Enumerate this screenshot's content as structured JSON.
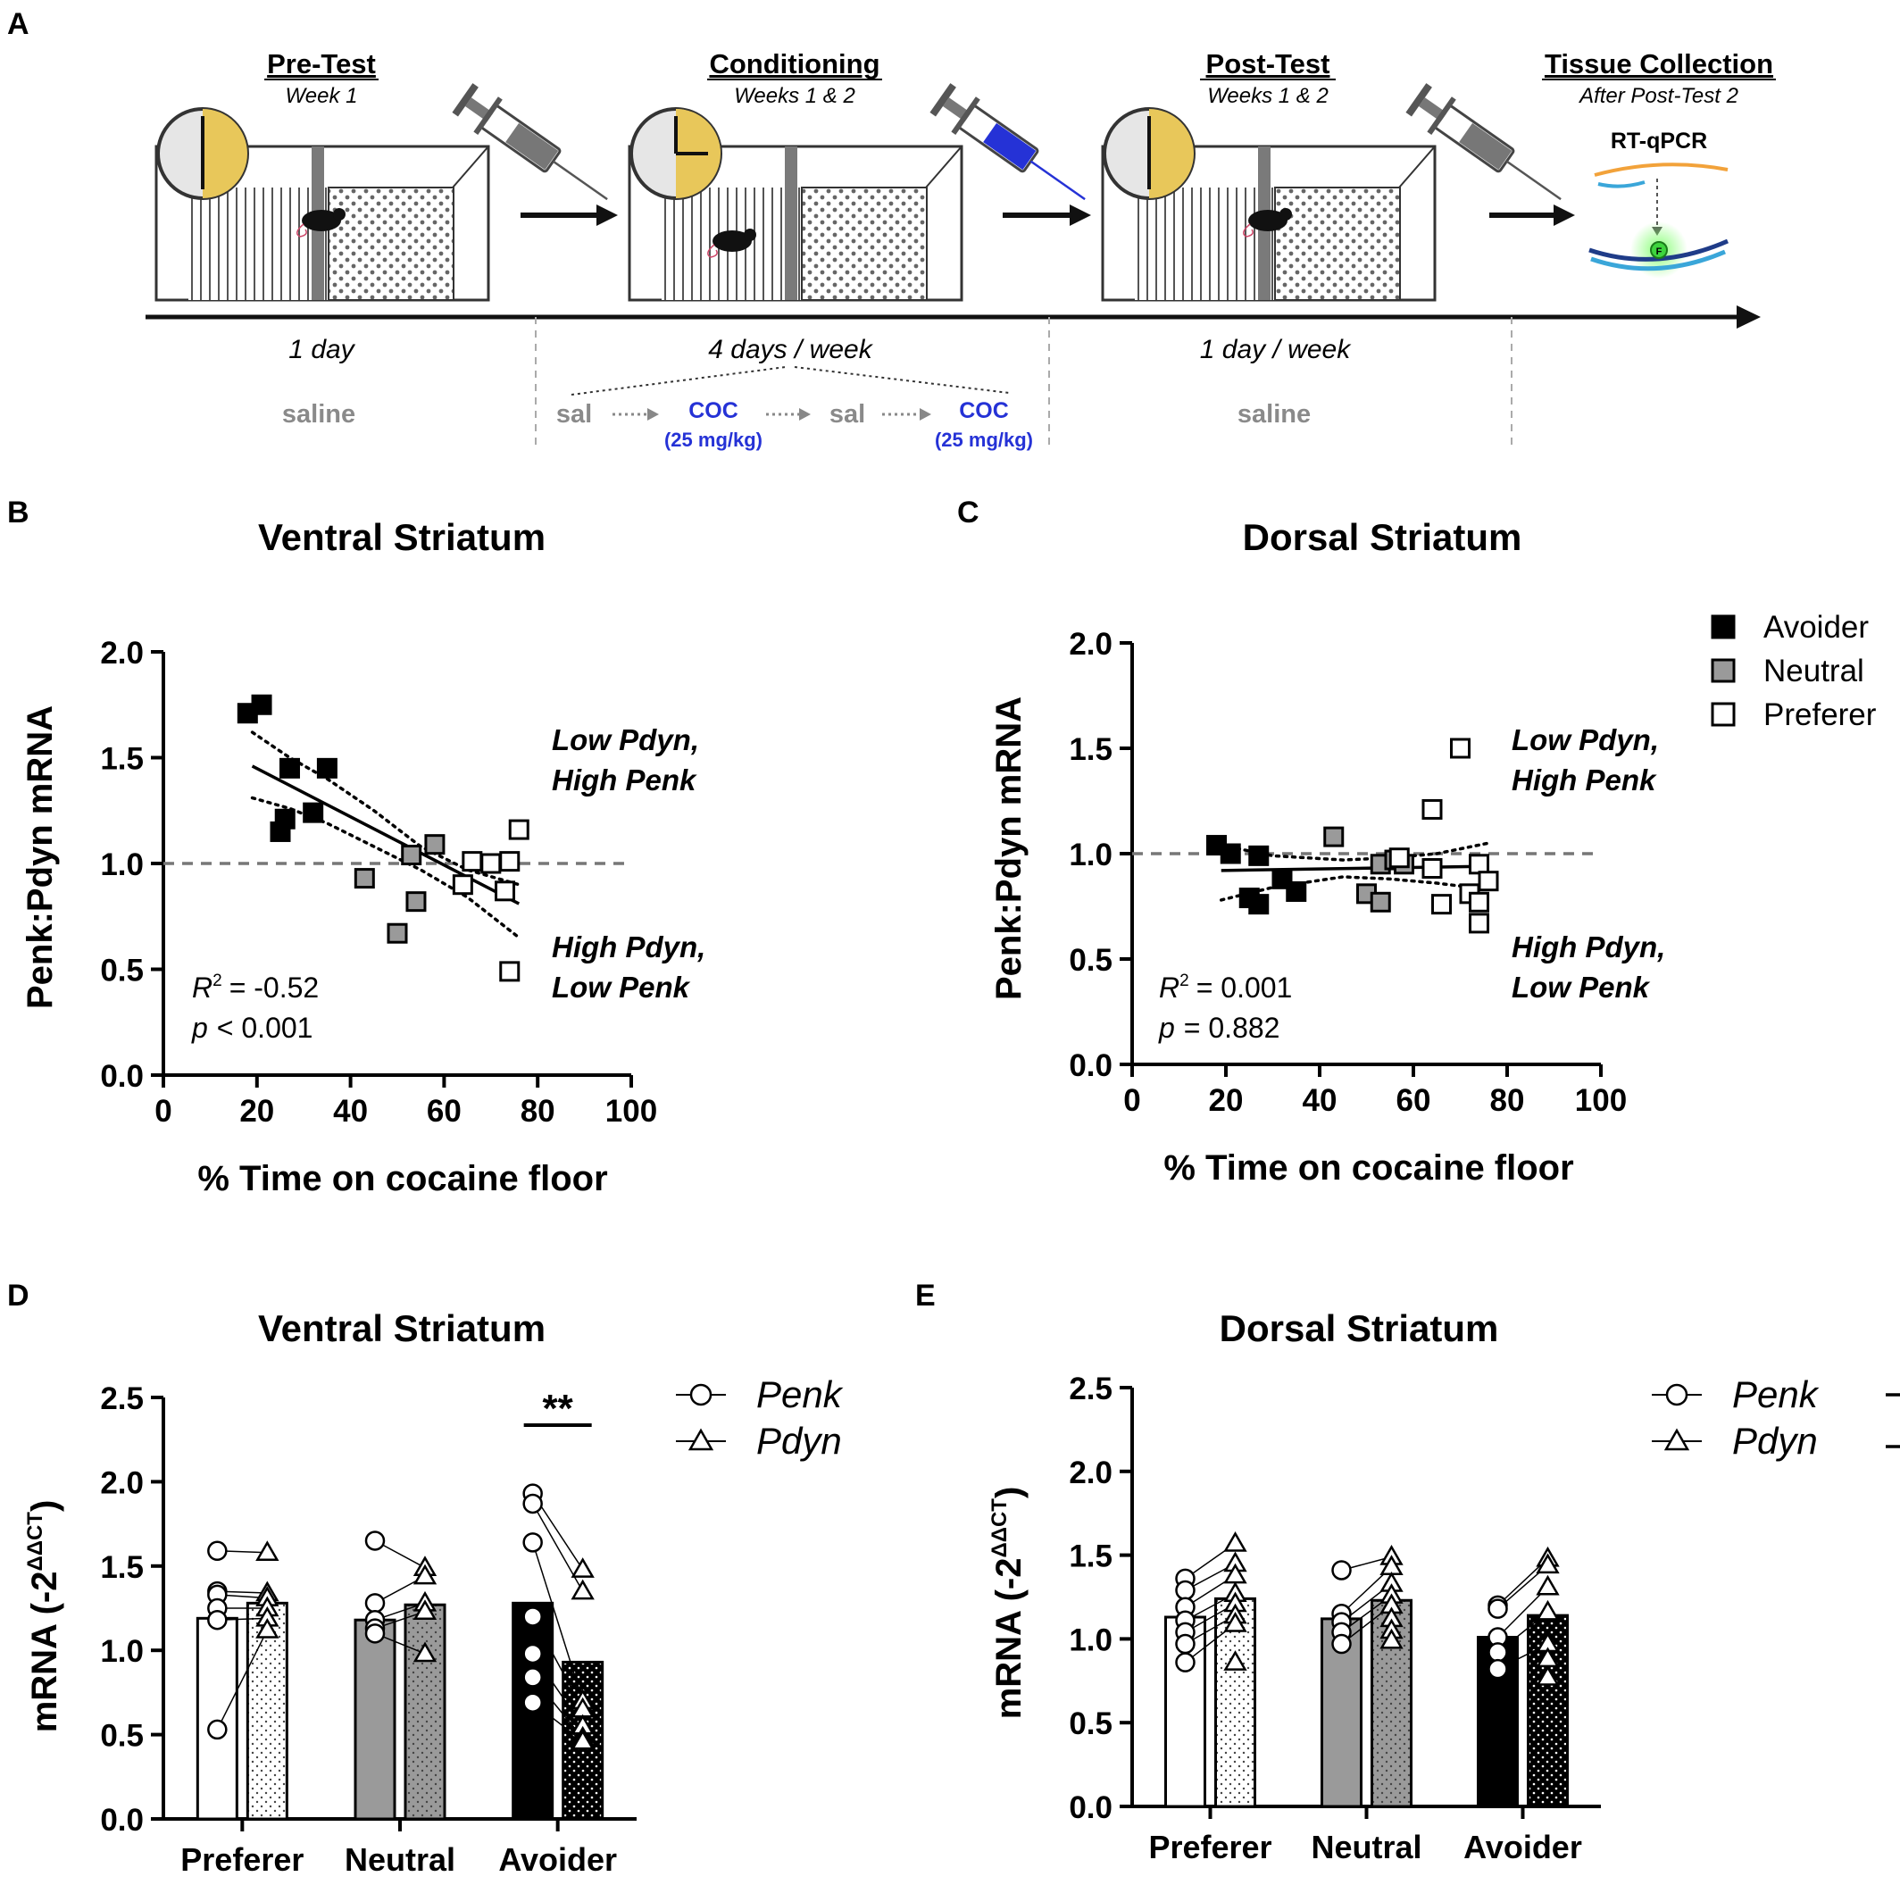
{
  "panels": {
    "a": "A",
    "b": "B",
    "c": "C",
    "d": "D",
    "e": "E"
  },
  "timeline": {
    "stages": [
      {
        "title": "Pre-Test",
        "sub": "Week 1"
      },
      {
        "title": "Conditioning",
        "sub": "Weeks 1 &  2"
      },
      {
        "title": "Post-Test",
        "sub": "Weeks 1 & 2"
      },
      {
        "title": "Tissue Collection",
        "sub": "After Post-Test 2"
      }
    ],
    "method": "RT-qPCR",
    "durations": [
      "1 day",
      "4 days / week",
      "1 day / week"
    ],
    "saline": "saline",
    "sal": "sal",
    "coc": "COC",
    "dose": "(25 mg/kg)",
    "syringe_colors": [
      "#777777",
      "#2532d6",
      "#777777"
    ],
    "timer_fill": "#e8c75a"
  },
  "scatter_common": {
    "ylabel": "Penk:Pdyn mRNA",
    "xlabel": "% Time on cocaine floor",
    "xticks": [
      "0",
      "20",
      "40",
      "60",
      "80",
      "100"
    ],
    "yticks": [
      "0.0",
      "0.5",
      "1.0",
      "1.5",
      "2.0"
    ],
    "quad_high_1": "Low Pdyn,",
    "quad_high_2": "High Penk",
    "quad_low_1": "High Pdyn,",
    "quad_low_2": "Low Penk",
    "r2_label": "R",
    "p_label": "p"
  },
  "legend_groups": [
    {
      "name": "Avoider",
      "color": "#000000"
    },
    {
      "name": "Neutral",
      "color": "#9a9a9a"
    },
    {
      "name": "Preferer",
      "color": "#ffffff"
    }
  ],
  "bar_common": {
    "ylabel_main": "mRNA (-2",
    "ylabel_sup": "ΔΔCT",
    "ylabel_close": ")",
    "categories": [
      "Preferer",
      "Neutral",
      "Avoider"
    ],
    "yticks": [
      "0.0",
      "0.5",
      "1.0",
      "1.5",
      "2.0",
      "2.5"
    ],
    "legend": [
      "Penk",
      "Pdyn"
    ]
  },
  "chart_data": [
    {
      "id": "B",
      "type": "scatter",
      "title": "Ventral Striatum",
      "xlabel": "% Time on cocaine floor",
      "ylabel": "Penk:Pdyn mRNA",
      "xlim": [
        0,
        100
      ],
      "ylim": [
        0,
        2.0
      ],
      "reference_line_y": 1.0,
      "r2": "= -0.52",
      "p": "< 0.001",
      "fit": {
        "x": [
          19,
          76
        ],
        "y": [
          1.46,
          0.81
        ]
      },
      "ci_upper": {
        "x": [
          19,
          27,
          35,
          45,
          55,
          65,
          76
        ],
        "y": [
          1.62,
          1.5,
          1.4,
          1.25,
          1.08,
          0.97,
          0.9
        ]
      },
      "ci_lower": {
        "x": [
          19,
          27,
          35,
          45,
          55,
          65,
          76
        ],
        "y": [
          1.31,
          1.26,
          1.19,
          1.08,
          0.97,
          0.84,
          0.65
        ]
      },
      "series": [
        {
          "name": "Avoider",
          "color": "#000000",
          "x": [
            18,
            21,
            27,
            35,
            25,
            26,
            32
          ],
          "y": [
            1.71,
            1.75,
            1.45,
            1.45,
            1.15,
            1.21,
            1.24
          ]
        },
        {
          "name": "Neutral",
          "color": "#9a9a9a",
          "x": [
            58,
            53,
            43,
            54,
            50
          ],
          "y": [
            1.09,
            1.04,
            0.93,
            0.82,
            0.67
          ]
        },
        {
          "name": "Preferer",
          "color": "#ffffff",
          "x": [
            76,
            66,
            70,
            74,
            64,
            73,
            74
          ],
          "y": [
            1.16,
            1.01,
            1.0,
            1.01,
            0.9,
            0.87,
            0.49
          ]
        }
      ]
    },
    {
      "id": "C",
      "type": "scatter",
      "title": "Dorsal Striatum",
      "xlabel": "% Time on cocaine floor",
      "ylabel": "Penk:Pdyn mRNA",
      "xlim": [
        0,
        100
      ],
      "ylim": [
        0,
        2.0
      ],
      "reference_line_y": 1.0,
      "r2": "= 0.001",
      "p": "= 0.882",
      "fit": {
        "x": [
          19,
          76
        ],
        "y": [
          0.92,
          0.94
        ]
      },
      "ci_upper": {
        "x": [
          19,
          30,
          45,
          55,
          65,
          76
        ],
        "y": [
          1.04,
          0.99,
          0.97,
          0.98,
          1.0,
          1.05
        ]
      },
      "ci_lower": {
        "x": [
          19,
          30,
          45,
          55,
          65,
          76
        ],
        "y": [
          0.78,
          0.84,
          0.89,
          0.88,
          0.86,
          0.83
        ]
      },
      "series": [
        {
          "name": "Avoider",
          "color": "#000000",
          "x": [
            18,
            21,
            27,
            32,
            35,
            25,
            27
          ],
          "y": [
            1.04,
            1.0,
            0.99,
            0.88,
            0.82,
            0.79,
            0.76
          ]
        },
        {
          "name": "Neutral",
          "color": "#9a9a9a",
          "x": [
            43,
            53,
            56,
            58,
            50,
            53
          ],
          "y": [
            1.08,
            0.95,
            0.97,
            0.95,
            0.81,
            0.77
          ]
        },
        {
          "name": "Preferer",
          "color": "#ffffff",
          "x": [
            70,
            64,
            57,
            64,
            74,
            76,
            72,
            66,
            74,
            74
          ],
          "y": [
            1.5,
            1.21,
            0.98,
            0.93,
            0.95,
            0.87,
            0.81,
            0.76,
            0.77,
            0.67
          ]
        }
      ]
    },
    {
      "id": "D",
      "type": "bar",
      "title": "Ventral Striatum",
      "ylabel": "mRNA (-2^ΔΔCT)",
      "ylim": [
        0,
        2.5
      ],
      "categories": [
        "Preferer",
        "Neutral",
        "Avoider"
      ],
      "series": [
        {
          "name": "Penk",
          "values": [
            1.19,
            1.18,
            1.28
          ],
          "points": [
            [
              1.59,
              1.35,
              1.33,
              1.25,
              1.18,
              0.53
            ],
            [
              1.65,
              1.28,
              1.18,
              1.13,
              1.1
            ],
            [
              1.93,
              1.87,
              1.64,
              1.2,
              0.98,
              0.84,
              0.69
            ]
          ]
        },
        {
          "name": "Pdyn",
          "values": [
            1.28,
            1.27,
            0.93
          ],
          "points": [
            [
              1.58,
              1.34,
              1.31,
              1.25,
              1.19,
              1.12
            ],
            [
              1.49,
              1.44,
              1.28,
              1.23,
              0.98
            ],
            [
              1.48,
              1.35,
              0.7,
              0.65,
              0.55,
              0.48,
              0.46
            ]
          ]
        }
      ],
      "annotations": [
        "**"
      ]
    },
    {
      "id": "E",
      "type": "bar",
      "title": "Dorsal Striatum",
      "ylabel": "mRNA (-2^ΔΔCT)",
      "ylim": [
        0,
        2.5
      ],
      "categories": [
        "Preferer",
        "Neutral",
        "Avoider"
      ],
      "series": [
        {
          "name": "Penk",
          "values": [
            1.13,
            1.12,
            1.01
          ],
          "points": [
            [
              1.36,
              1.29,
              1.19,
              1.11,
              1.04,
              0.97,
              0.86
            ],
            [
              1.41,
              1.15,
              1.1,
              1.04,
              0.97
            ],
            [
              1.2,
              1.18,
              1.01,
              0.92,
              0.82
            ]
          ]
        },
        {
          "name": "Pdyn",
          "values": [
            1.24,
            1.23,
            1.14
          ],
          "points": [
            [
              1.57,
              1.45,
              1.38,
              1.27,
              1.21,
              1.14,
              1.09,
              0.86
            ],
            [
              1.49,
              1.43,
              1.33,
              1.26,
              1.2,
              1.12,
              1.05,
              0.99
            ],
            [
              1.48,
              1.44,
              1.31,
              1.16,
              0.97,
              0.88,
              0.77
            ]
          ]
        }
      ],
      "annotations": [
        "*"
      ]
    }
  ]
}
